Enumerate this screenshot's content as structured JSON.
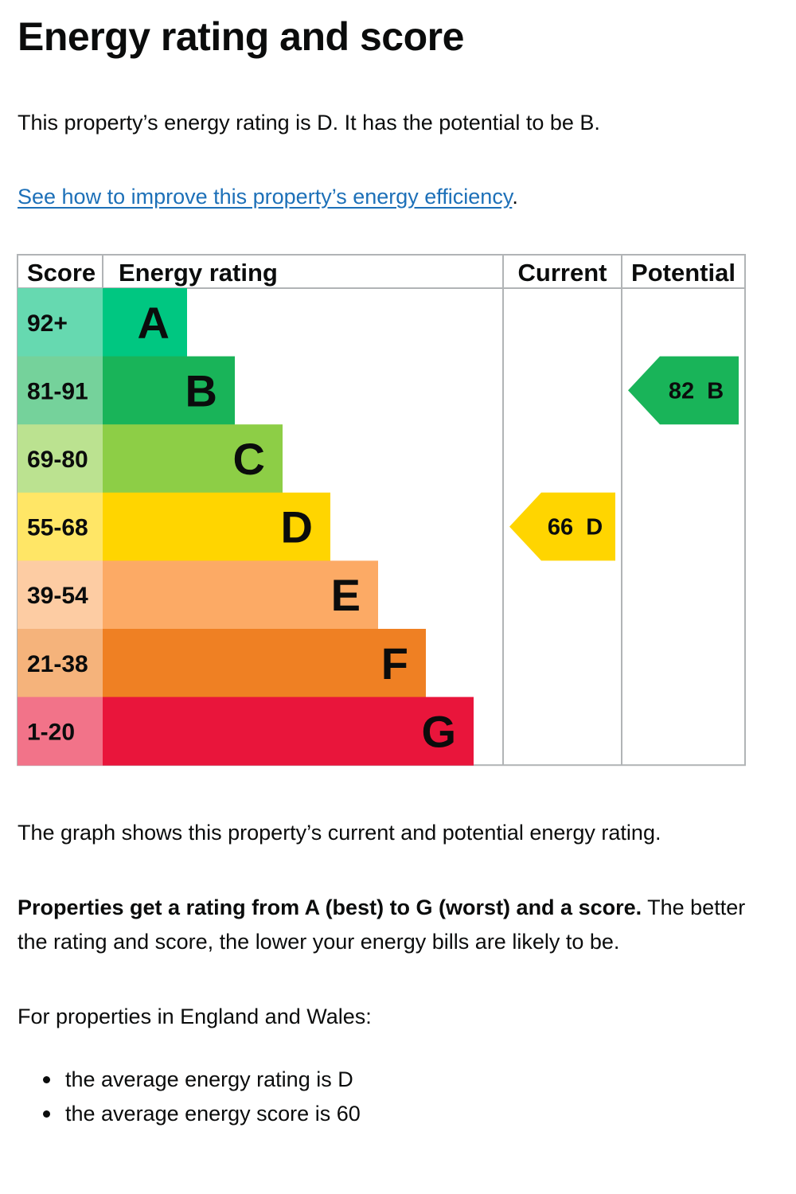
{
  "page": {
    "title": "Energy rating and score",
    "intro": "This property’s energy rating is D. It has the potential to be B.",
    "link_text": "See how to improve this property’s energy efficiency",
    "link_suffix": ".",
    "graph_note": "The graph shows this property’s current and potential energy rating.",
    "rating_bold": "Properties get a rating from A (best) to G (worst) and a score.",
    "rating_rest": " The better the rating and score, the lower your energy bills are likely to be.",
    "region_intro": "For properties in England and Wales:",
    "bullets": [
      "the average energy rating is D",
      "the average energy score is 60"
    ]
  },
  "chart_data": {
    "type": "bar",
    "headers": {
      "score": "Score",
      "rating": "Energy rating",
      "current": "Current",
      "potential": "Potential"
    },
    "bands": [
      {
        "letter": "A",
        "range": "92+",
        "color": "#00c781",
        "light": "#66d9b0"
      },
      {
        "letter": "B",
        "range": "81-91",
        "color": "#19b459",
        "light": "#75d29b"
      },
      {
        "letter": "C",
        "range": "69-80",
        "color": "#8dce46",
        "light": "#bbe290"
      },
      {
        "letter": "D",
        "range": "55-68",
        "color": "#ffd500",
        "light": "#ffe666"
      },
      {
        "letter": "E",
        "range": "39-54",
        "color": "#fcaa65",
        "light": "#fdcca3"
      },
      {
        "letter": "F",
        "range": "21-38",
        "color": "#ef8023",
        "light": "#f5b37b"
      },
      {
        "letter": "G",
        "range": "1-20",
        "color": "#e9153b",
        "light": "#f27389"
      }
    ],
    "current": {
      "score": 66,
      "letter": "D",
      "label": "66  D"
    },
    "potential": {
      "score": 82,
      "letter": "B",
      "label": "82  B"
    }
  }
}
